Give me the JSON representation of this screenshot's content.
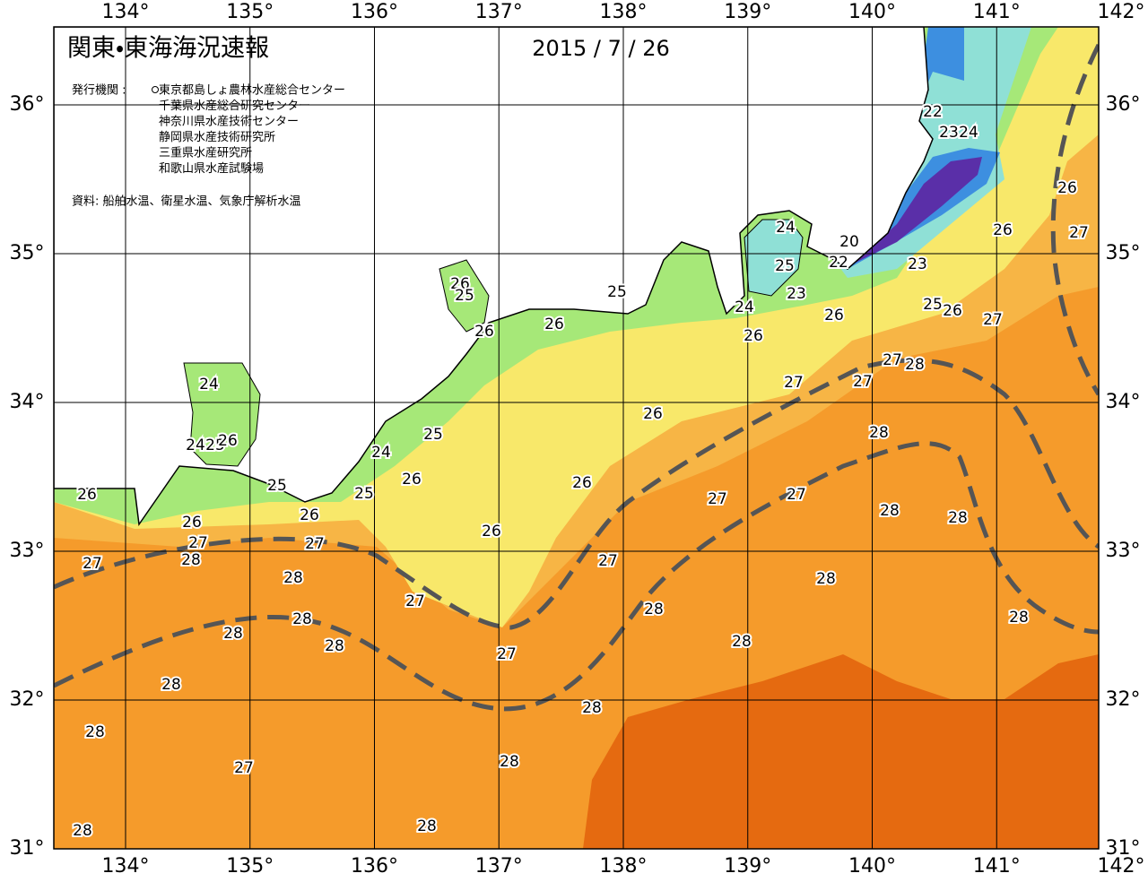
{
  "header": {
    "title": "関東・東海海況速報",
    "date": "2015 / 7 / 26",
    "issuer_label": "発行機関 :",
    "issuers": [
      "東京都島しょ農林水産総合センター",
      "千葉県水産総合研究センター",
      "神奈川県水産技術センター",
      "静岡県水産技術研究所",
      "三重県水産研究所",
      "和歌山県水産試験場"
    ],
    "source": "資料: 船舶水温、衛星水温、気象庁解析水温"
  },
  "map": {
    "longitudes": [
      {
        "value": 134,
        "label": "134°"
      },
      {
        "value": 135,
        "label": "135°"
      },
      {
        "value": 136,
        "label": "136°"
      },
      {
        "value": 137,
        "label": "137°"
      },
      {
        "value": 138,
        "label": "138°"
      },
      {
        "value": 139,
        "label": "139°"
      },
      {
        "value": 140,
        "label": "140°"
      },
      {
        "value": 141,
        "label": "141°"
      },
      {
        "value": 142,
        "label": "142°"
      }
    ],
    "latitudes": [
      {
        "value": 31,
        "label": "31°"
      },
      {
        "value": 32,
        "label": "32°"
      },
      {
        "value": 33,
        "label": "33°"
      },
      {
        "value": 34,
        "label": "34°"
      },
      {
        "value": 35,
        "label": "35°"
      },
      {
        "value": 36,
        "label": "36°"
      }
    ],
    "contour_labels": [
      22,
      23,
      24,
      26,
      27,
      26,
      24,
      20,
      22,
      23,
      25,
      23,
      24,
      26,
      25,
      26,
      27,
      26,
      27,
      28,
      27,
      27,
      26,
      28,
      27,
      27,
      28,
      28,
      28,
      28,
      28,
      28,
      28,
      28,
      28,
      27,
      27,
      26,
      26,
      27,
      25,
      26,
      25,
      26,
      26,
      24,
      24,
      25,
      26,
      24,
      25,
      26,
      25,
      25,
      26,
      26,
      26,
      27,
      27,
      28,
      27,
      28,
      28,
      28,
      28,
      28,
      28,
      27,
      28
    ]
  }
}
